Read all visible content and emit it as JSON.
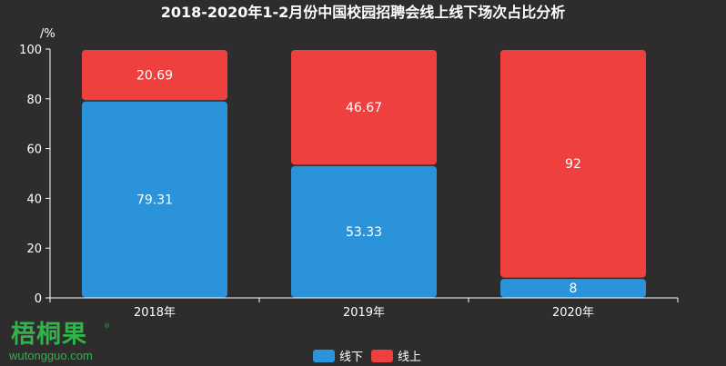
{
  "chart_data": {
    "type": "bar",
    "stacked": true,
    "title": "2018-2020年1-2月份中国校园招聘会线上线下场次占比分析",
    "ylabel": "/%",
    "categories": [
      "2018年",
      "2019年",
      "2020年"
    ],
    "ylim": [
      0,
      100
    ],
    "yticks": [
      0,
      20,
      40,
      60,
      80,
      100
    ],
    "grid": false,
    "legend": "bottom-center",
    "series": [
      {
        "name": "线下",
        "color": "#2a93d9",
        "values": [
          79.31,
          53.33,
          8
        ]
      },
      {
        "name": "线上",
        "color": "#ef4040",
        "values": [
          20.69,
          46.67,
          92
        ]
      }
    ]
  },
  "watermark": {
    "brand_cn": "梧桐果",
    "brand_reg": "®",
    "url": "wutongguo.com",
    "color": "#2fb34a"
  }
}
